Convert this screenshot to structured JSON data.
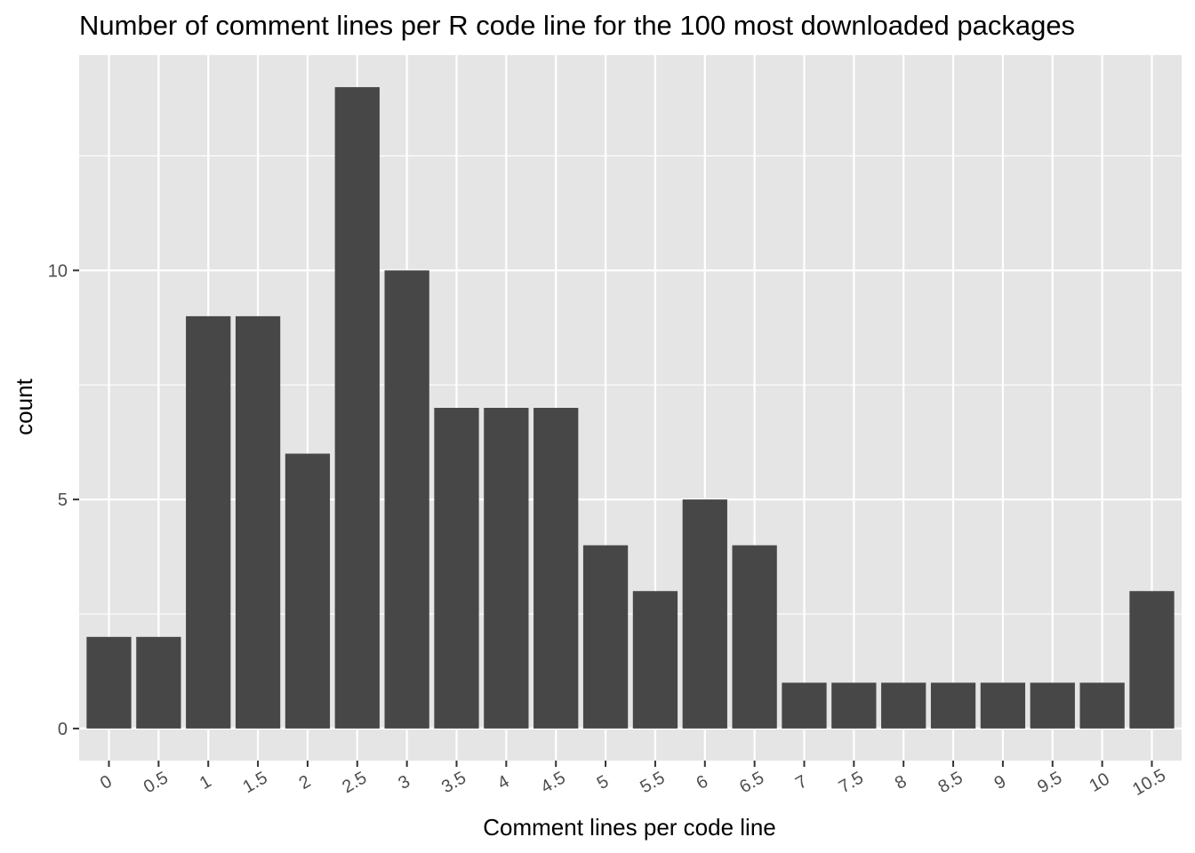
{
  "chart_data": {
    "type": "bar",
    "title": "Number of comment lines per R code line for the 100 most downloaded packages",
    "xlabel": "Comment lines per code line",
    "ylabel": "count",
    "categories": [
      "0",
      "0.5",
      "1",
      "1.5",
      "2",
      "2.5",
      "3",
      "3.5",
      "4",
      "4.5",
      "5",
      "5.5",
      "6",
      "6.5",
      "7",
      "7.5",
      "8",
      "8.5",
      "9",
      "9.5",
      "10",
      "10.5"
    ],
    "values": [
      2,
      2,
      9,
      9,
      6,
      14,
      10,
      7,
      7,
      7,
      4,
      3,
      5,
      4,
      1,
      1,
      1,
      1,
      1,
      1,
      1,
      3
    ],
    "yticks": [
      0,
      5,
      10
    ],
    "ylim": [
      -0.7,
      14.7
    ],
    "grid": true,
    "colors": {
      "panel": "#e5e5e5",
      "bar": "#474747",
      "grid": "#ffffff"
    }
  }
}
